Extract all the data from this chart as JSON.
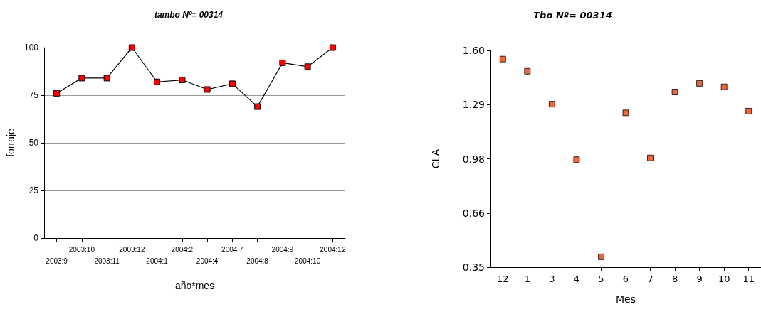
{
  "chart_data": [
    {
      "type": "line",
      "title": "tambo Nº= 00314",
      "xlabel": "año*mes",
      "ylabel": "forraje",
      "categories": [
        "2003:9",
        "2003:10",
        "2003:11",
        "2003:12",
        "2004:1",
        "2004:2",
        "2004:4",
        "2004:7",
        "2004:8",
        "2004:9",
        "2004:10",
        "2004:12"
      ],
      "series": [
        {
          "color": "#ff0000",
          "values": [
            76,
            84,
            84,
            100,
            82,
            83,
            78,
            81,
            69,
            92,
            90,
            100
          ]
        }
      ],
      "ylim": [
        0,
        100
      ],
      "yticks": [
        0,
        25,
        50,
        75,
        100
      ],
      "grid": "y",
      "marker": "square",
      "line_style": "solid",
      "ref_lines": [
        {
          "axis": "x",
          "value": "2004:1",
          "color": "#999999"
        }
      ]
    },
    {
      "type": "scatter",
      "title": "Tbo Nº= 00314",
      "xlabel": "Mes",
      "ylabel": "CLA",
      "categories": [
        "12",
        "1",
        "3",
        "4",
        "5",
        "6",
        "7",
        "8",
        "9",
        "10",
        "11"
      ],
      "series": [
        {
          "color": "#e8400c",
          "values": [
            1.55,
            1.48,
            1.29,
            0.97,
            0.41,
            1.24,
            0.98,
            1.36,
            1.41,
            1.39,
            1.25
          ]
        }
      ],
      "ylim": [
        0.35,
        1.6
      ],
      "yticks": [
        0.35,
        {
          "value": 0.6625,
          "label": "0.66"
        },
        {
          "value": 0.975,
          "label": "0.98"
        },
        {
          "value": 1.2875,
          "label": "1.29"
        },
        {
          "value": 1.6,
          "label": "1.60"
        }
      ],
      "grid": false,
      "marker": "square"
    }
  ]
}
